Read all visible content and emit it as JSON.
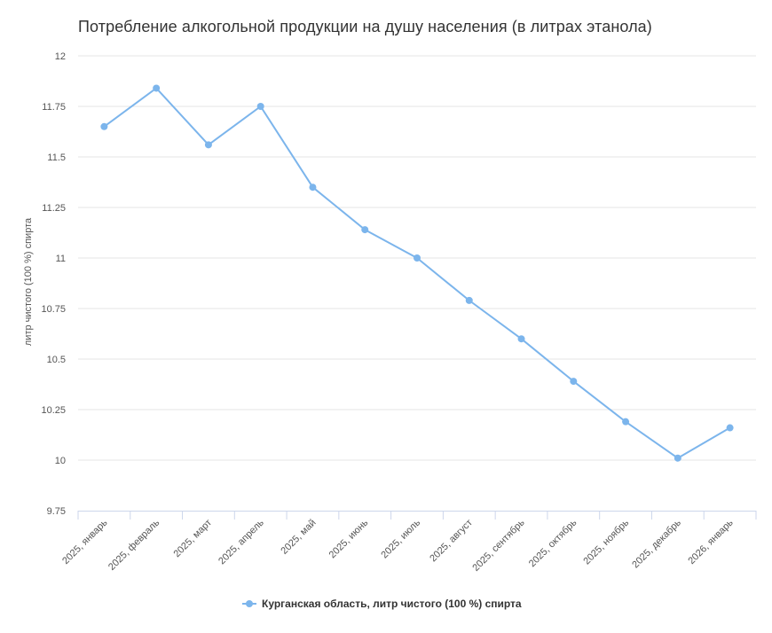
{
  "chart_data": {
    "type": "line",
    "title": "Потребление алкогольной продукции на душу населения (в литрах этанола)",
    "ylabel": "литр чистого (100 %) спирта",
    "xlabel": "",
    "ylim": [
      9.75,
      12
    ],
    "yticks": [
      "9.75",
      "10",
      "10.25",
      "10.5",
      "10.75",
      "11",
      "11.25",
      "11.5",
      "11.75",
      "12"
    ],
    "categories": [
      "2025, январь",
      "2025, февраль",
      "2025, март",
      "2025, апрель",
      "2025, май",
      "2025, июнь",
      "2025, июль",
      "2025, август",
      "2025, сентябрь",
      "2025, октябрь",
      "2025, ноябрь",
      "2025, декабрь",
      "2026, январь"
    ],
    "series": [
      {
        "name": "Курганская область, литр чистого (100 %) спирта",
        "color": "#7cb5ec",
        "values": [
          11.65,
          11.84,
          11.56,
          11.75,
          11.35,
          11.14,
          11.0,
          10.79,
          10.6,
          10.39,
          10.19,
          10.01,
          10.16
        ]
      }
    ],
    "grid": true,
    "legend": "bottom-center"
  }
}
